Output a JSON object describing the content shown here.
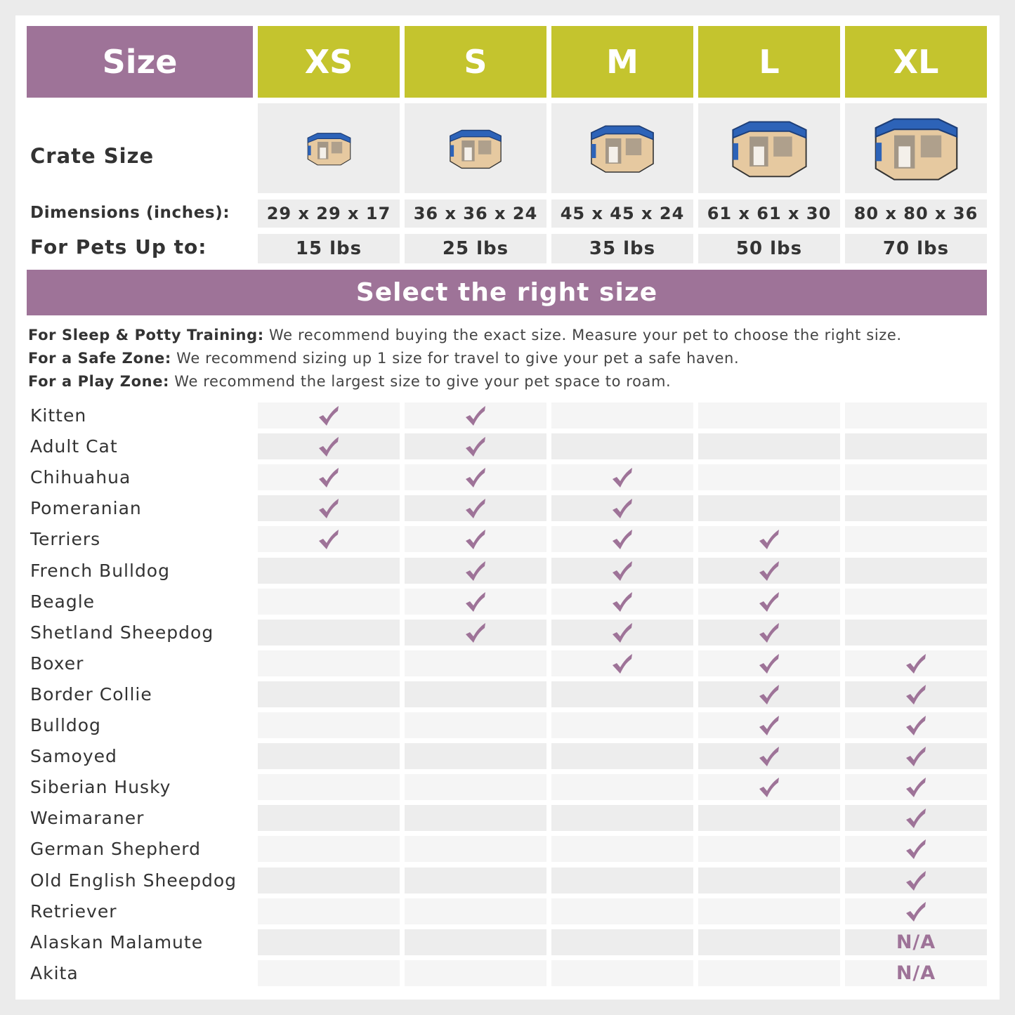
{
  "header": {
    "size_label": "Size",
    "sizes": [
      "XS",
      "S",
      "M",
      "L",
      "XL"
    ]
  },
  "labels": {
    "crate_size": "Crate Size",
    "dimensions": "Dimensions (inches):",
    "pets_up_to": "For Pets Up to:"
  },
  "dimensions": [
    "29 x 29 x 17",
    "36 x 36 x 24",
    "45 x 45 x 24",
    "61 x 61 x 30",
    "80 x 80 x 36"
  ],
  "weights": [
    "15 lbs",
    "25 lbs",
    "35 lbs",
    "50 lbs",
    "70 lbs"
  ],
  "crate_images": [
    "playpen-xs",
    "playpen-s",
    "playpen-m",
    "playpen-l",
    "playpen-xl"
  ],
  "banner": "Select the right size",
  "notes": [
    {
      "title": "For Sleep & Potty Training:",
      "text": " We recommend buying the exact size. Measure your pet to choose the right size."
    },
    {
      "title": "For a Safe Zone:",
      "text": " We recommend sizing up 1 size for travel to give your pet a safe haven."
    },
    {
      "title": "For a Play Zone:",
      "text": " We recommend the largest size to give your pet space to roam."
    }
  ],
  "colors": {
    "purple": "#9e7398",
    "lime": "#c4c42e",
    "check": "#9e7398"
  },
  "breeds": [
    {
      "name": "Kitten",
      "cells": [
        "check",
        "check",
        "",
        "",
        ""
      ]
    },
    {
      "name": "Adult Cat",
      "cells": [
        "check",
        "check",
        "",
        "",
        ""
      ]
    },
    {
      "name": "Chihuahua",
      "cells": [
        "check",
        "check",
        "check",
        "",
        ""
      ]
    },
    {
      "name": "Pomeranian",
      "cells": [
        "check",
        "check",
        "check",
        "",
        ""
      ]
    },
    {
      "name": "Terriers",
      "cells": [
        "check",
        "check",
        "check",
        "check",
        ""
      ]
    },
    {
      "name": "French Bulldog",
      "cells": [
        "",
        "check",
        "check",
        "check",
        ""
      ]
    },
    {
      "name": "Beagle",
      "cells": [
        "",
        "check",
        "check",
        "check",
        ""
      ]
    },
    {
      "name": "Shetland Sheepdog",
      "cells": [
        "",
        "check",
        "check",
        "check",
        ""
      ]
    },
    {
      "name": "Boxer",
      "cells": [
        "",
        "",
        "check",
        "check",
        "check"
      ]
    },
    {
      "name": "Border Collie",
      "cells": [
        "",
        "",
        "",
        "check",
        "check"
      ]
    },
    {
      "name": "Bulldog",
      "cells": [
        "",
        "",
        "",
        "check",
        "check"
      ]
    },
    {
      "name": "Samoyed",
      "cells": [
        "",
        "",
        "",
        "check",
        "check"
      ]
    },
    {
      "name": "Siberian Husky",
      "cells": [
        "",
        "",
        "",
        "check",
        "check"
      ]
    },
    {
      "name": "Weimaraner",
      "cells": [
        "",
        "",
        "",
        "",
        "check"
      ]
    },
    {
      "name": "German Shepherd",
      "cells": [
        "",
        "",
        "",
        "",
        "check"
      ]
    },
    {
      "name": "Old English Sheepdog",
      "cells": [
        "",
        "",
        "",
        "",
        "check"
      ]
    },
    {
      "name": "Retriever",
      "cells": [
        "",
        "",
        "",
        "",
        "check"
      ]
    },
    {
      "name": "Alaskan Malamute",
      "cells": [
        "",
        "",
        "",
        "",
        "N/A"
      ]
    },
    {
      "name": "Akita",
      "cells": [
        "",
        "",
        "",
        "",
        "N/A"
      ]
    }
  ]
}
